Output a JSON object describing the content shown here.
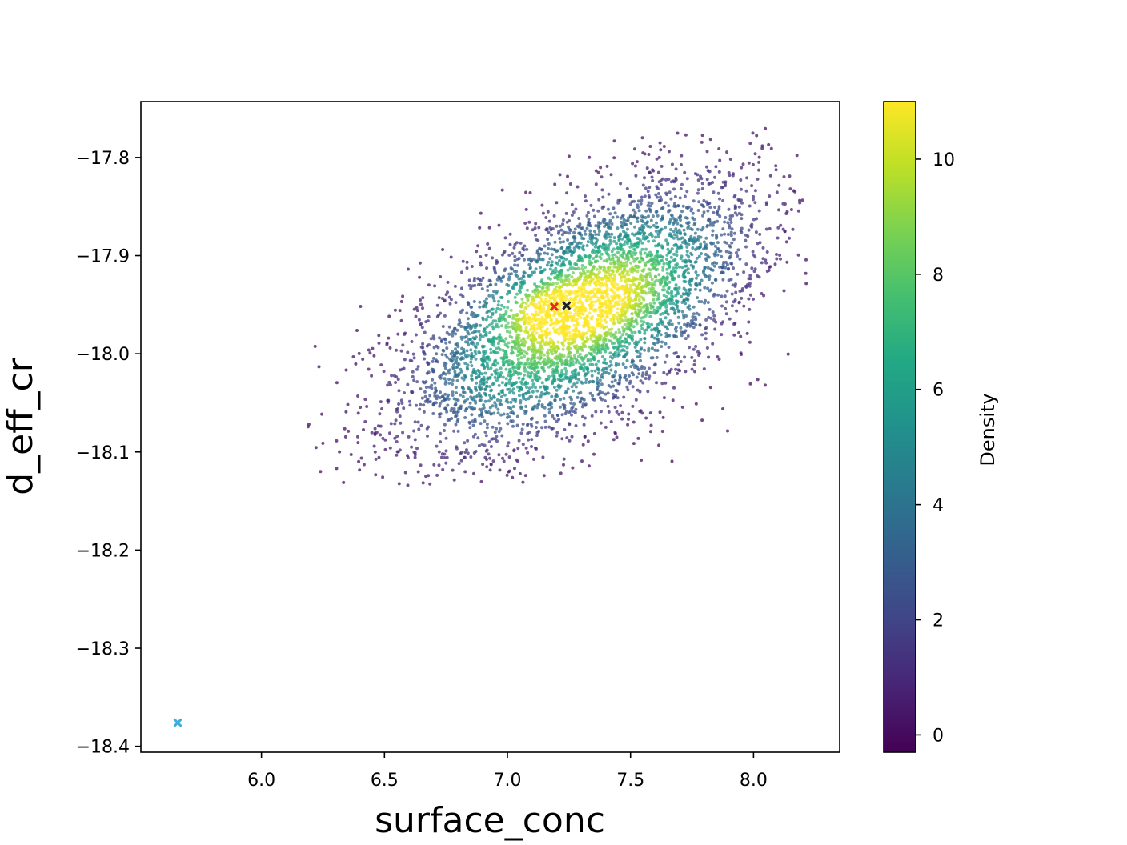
{
  "chart_data": {
    "type": "scatter",
    "title": "",
    "xlabel": "surface_conc",
    "ylabel": "d_eff_cr",
    "xlim": [
      5.51,
      8.35
    ],
    "ylim": [
      -18.406,
      -17.743
    ],
    "xticks": [
      6.0,
      6.5,
      7.0,
      7.5,
      8.0
    ],
    "xtick_labels": [
      "6.0",
      "6.5",
      "7.0",
      "7.5",
      "8.0"
    ],
    "yticks": [
      -17.8,
      -17.9,
      -18.0,
      -18.1,
      -18.2,
      -18.3,
      -18.4
    ],
    "ytick_labels": [
      "−17.8",
      "−17.9",
      "−18.0",
      "−18.1",
      "−18.2",
      "−18.3",
      "−18.4"
    ],
    "grid": false,
    "legend": "none",
    "colormap": "viridis",
    "colorbar": {
      "label": "Density",
      "range": [
        -0.3,
        11.0
      ],
      "ticks": [
        0,
        2,
        4,
        6,
        8,
        10
      ],
      "tick_labels": [
        "0",
        "2",
        "4",
        "6",
        "8",
        "10"
      ]
    },
    "density_cloud": {
      "point_count_estimate": 5000,
      "description_values": {
        "main_cluster_center": [
          7.15,
          -17.955
        ],
        "secondary_cluster_center": [
          7.45,
          -17.935
        ],
        "x_extent": [
          6.18,
          8.22
        ],
        "y_extent": [
          -18.135,
          -17.77
        ],
        "correlation": 0.6
      }
    },
    "markers": [
      {
        "name": "",
        "x": 7.19,
        "y": -17.952,
        "color": "#e8291c",
        "shape": "x"
      },
      {
        "name": "",
        "x": 7.24,
        "y": -17.951,
        "color": "#222222",
        "shape": "x"
      },
      {
        "name": "",
        "x": 5.66,
        "y": -18.376,
        "color": "#3aaee0",
        "shape": "x"
      }
    ]
  }
}
